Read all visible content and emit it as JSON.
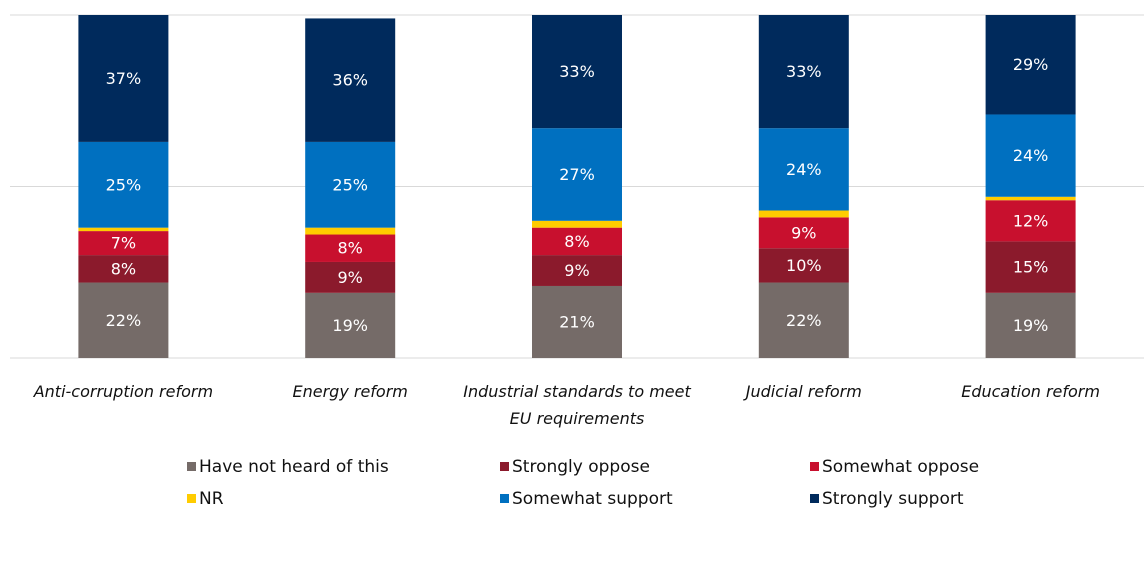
{
  "chart_data": {
    "type": "stacked_bar",
    "categories": [
      "Anti-corruption reform",
      "Energy reform",
      "Industrial standards to meet EU requirements",
      "Judicial reform",
      "Education reform"
    ],
    "series": [
      {
        "name": "Have not heard of this",
        "color": "#756b68",
        "values": [
          22,
          19,
          21,
          22,
          19
        ],
        "value_labels": [
          "22%",
          "19%",
          "21%",
          "22%",
          "19%"
        ]
      },
      {
        "name": "Strongly oppose",
        "color": "#8b1a2c",
        "values": [
          8,
          9,
          9,
          10,
          15
        ],
        "value_labels": [
          "8%",
          "9%",
          "9%",
          "10%",
          "15%"
        ]
      },
      {
        "name": "Somewhat oppose",
        "color": "#c8102e",
        "values": [
          7,
          8,
          8,
          9,
          12
        ],
        "value_labels": [
          "7%",
          "8%",
          "8%",
          "9%",
          "12%"
        ]
      },
      {
        "name": "NR",
        "color": "#ffcc00",
        "values": [
          1,
          2,
          2,
          2,
          1
        ]
      },
      {
        "name": "Somewhat support",
        "color": "#0070c0",
        "values": [
          25,
          25,
          27,
          24,
          24
        ],
        "value_labels": [
          "25%",
          "25%",
          "27%",
          "24%",
          "24%"
        ]
      },
      {
        "name": "Strongly support",
        "color": "#002a5c",
        "values": [
          37,
          36,
          33,
          33,
          29
        ],
        "value_labels": [
          "37%",
          "36%",
          "33%",
          "33%",
          "29%"
        ]
      }
    ],
    "ylim": [
      0,
      100
    ],
    "yticks": [
      0,
      50,
      100
    ],
    "grid": true
  }
}
